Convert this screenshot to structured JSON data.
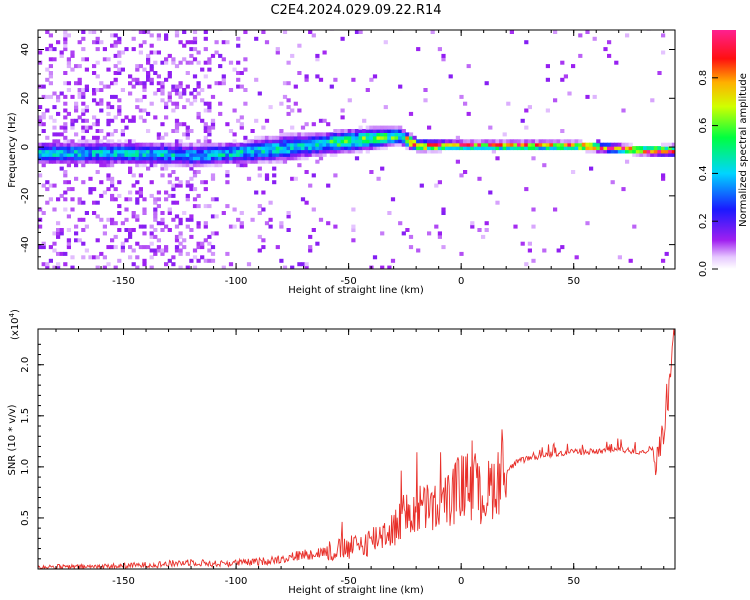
{
  "title": "C2E4.2024.029.09.22.R14",
  "colors": {
    "snr_line": "#e8302a",
    "axis": "#000000"
  },
  "chart_data": [
    {
      "type": "heatmap",
      "title": "C2E4.2024.029.09.22.R14",
      "xlabel": "Height of straight line (km)",
      "ylabel": "Frequency (Hz)",
      "xlim": [
        -188,
        95
      ],
      "ylim": [
        -50,
        48
      ],
      "xticks": [
        -150,
        -100,
        -50,
        0,
        50
      ],
      "yticks": [
        -40,
        -20,
        0,
        20,
        40
      ],
      "colorbar": {
        "label": "Normalized spectral amplitude",
        "range": [
          0.0,
          1.0
        ],
        "ticks": [
          0.0,
          0.2,
          0.4,
          0.6,
          0.8
        ],
        "tick_labels": [
          "0.0",
          "0.2",
          "0.4",
          "0.6",
          "0.8"
        ],
        "colormap": "rainbow (white → violet → blue → cyan → green → yellow → red → magenta)"
      },
      "ridge": {
        "description": "main signal band along frequency ≈ 0 Hz",
        "x": [
          -188,
          -150,
          -120,
          -100,
          -80,
          -60,
          -40,
          -28,
          -20,
          0,
          20,
          50,
          80,
          95
        ],
        "center_freq": [
          -3,
          -3,
          -4,
          -3,
          -1,
          1,
          3,
          4,
          0,
          0,
          0,
          0,
          -2,
          -2
        ],
        "half_width": [
          4,
          4,
          4,
          4,
          5,
          4,
          4,
          3,
          2,
          1.5,
          1.5,
          1.5,
          1.5,
          2
        ]
      }
    },
    {
      "type": "line",
      "xlabel": "Height of straight line (km)",
      "ylabel": "SNR (10 * v/v)",
      "y_multiplier_label": "(x10",
      "y_multiplier_exp": "4",
      "xlim": [
        -188,
        95
      ],
      "ylim": [
        0,
        2.35
      ],
      "xticks": [
        -150,
        -100,
        -50,
        0,
        50
      ],
      "yticks": [
        0.5,
        1.0,
        1.5,
        2.0
      ],
      "ytick_labels": [
        "0.5",
        "1.0",
        "1.5",
        "2.0"
      ],
      "series": [
        {
          "x": [
            -188,
            -170,
            -150,
            -130,
            -120,
            -110,
            -100,
            -90,
            -80,
            -70,
            -60,
            -50,
            -45,
            -40,
            -35,
            -30,
            -25,
            -20,
            -15,
            -10,
            -5,
            0,
            5,
            10,
            15,
            20,
            25,
            30,
            40,
            50,
            60,
            70,
            80,
            85,
            88,
            90,
            92,
            94
          ],
          "y": [
            0.02,
            0.02,
            0.03,
            0.05,
            0.07,
            0.05,
            0.06,
            0.07,
            0.1,
            0.14,
            0.17,
            0.2,
            0.23,
            0.28,
            0.35,
            0.4,
            0.5,
            0.58,
            0.6,
            0.58,
            0.7,
            0.82,
            0.78,
            0.7,
            0.85,
            0.95,
            1.05,
            1.08,
            1.12,
            1.15,
            1.15,
            1.17,
            1.15,
            1.18,
            1.1,
            1.4,
            1.8,
            2.3
          ]
        }
      ]
    }
  ]
}
